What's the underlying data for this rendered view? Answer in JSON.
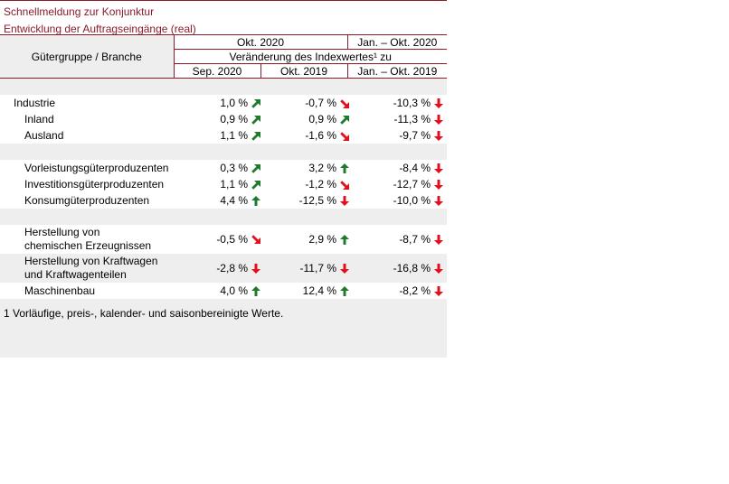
{
  "title_line1": "Schnellmeldung zur Konjunktur",
  "title_line2": "Entwicklung der Auftragseingänge (real)",
  "header": {
    "col0": "Gütergruppe / Branche",
    "group_okt": "Okt. 2020",
    "group_jan": "Jan. – Okt. 2020",
    "veraenderung": "Veränderung des Indexwertes¹ zu",
    "c1": "Sep. 2020",
    "c2": "Okt. 2019",
    "c3": "Jan. – Okt. 2019"
  },
  "rows": [
    {
      "label": "Industrie",
      "v1": "1,0 %",
      "a1": "up-right",
      "v2": "-0,7 %",
      "a2": "down-right",
      "v3": "-10,3 %",
      "a3": "down"
    },
    {
      "label": "Inland",
      "v1": "0,9 %",
      "a1": "up-right",
      "v2": "0,9 %",
      "a2": "up-right",
      "v3": "-11,3 %",
      "a3": "down"
    },
    {
      "label": "Ausland",
      "v1": "1,1 %",
      "a1": "up-right",
      "v2": "-1,6 %",
      "a2": "down-right",
      "v3": "-9,7 %",
      "a3": "down"
    },
    {
      "label": "Vorleistungsgüterproduzenten",
      "v1": "0,3 %",
      "a1": "up-right",
      "v2": "3,2 %",
      "a2": "up",
      "v3": "-8,4 %",
      "a3": "down"
    },
    {
      "label": "Investitionsgüterproduzenten",
      "v1": "1,1 %",
      "a1": "up-right",
      "v2": "-1,2 %",
      "a2": "down-right",
      "v3": "-12,7 %",
      "a3": "down"
    },
    {
      "label": "Konsumgüterproduzenten",
      "v1": "4,4 %",
      "a1": "up",
      "v2": "-12,5 %",
      "a2": "down",
      "v3": "-10,0 %",
      "a3": "down"
    },
    {
      "label_line1": "Herstellung von",
      "label_line2": "chemischen Erzeugnissen",
      "v1": "-0,5 %",
      "a1": "down-right",
      "v2": "2,9 %",
      "a2": "up",
      "v3": "-8,7 %",
      "a3": "down"
    },
    {
      "label_line1": "Herstellung von Kraftwagen",
      "label_line2": "und Kraftwagenteilen",
      "v1": "-2,8 %",
      "a1": "down",
      "v2": "-11,7 %",
      "a2": "down",
      "v3": "-16,8 %",
      "a3": "down"
    },
    {
      "label": "Maschinenbau",
      "v1": "4,0 %",
      "a1": "up",
      "v2": "12,4 %",
      "a2": "up",
      "v3": "-8,2 %",
      "a3": "down"
    }
  ],
  "footnote": "1 Vorläufige, preis-, kalender- und saisonbereinigte Werte.",
  "colors": {
    "accent": "#8b1a2b",
    "up": "#1e7b2e",
    "down": "#e3101b",
    "row_alt": "#eeeeee"
  }
}
